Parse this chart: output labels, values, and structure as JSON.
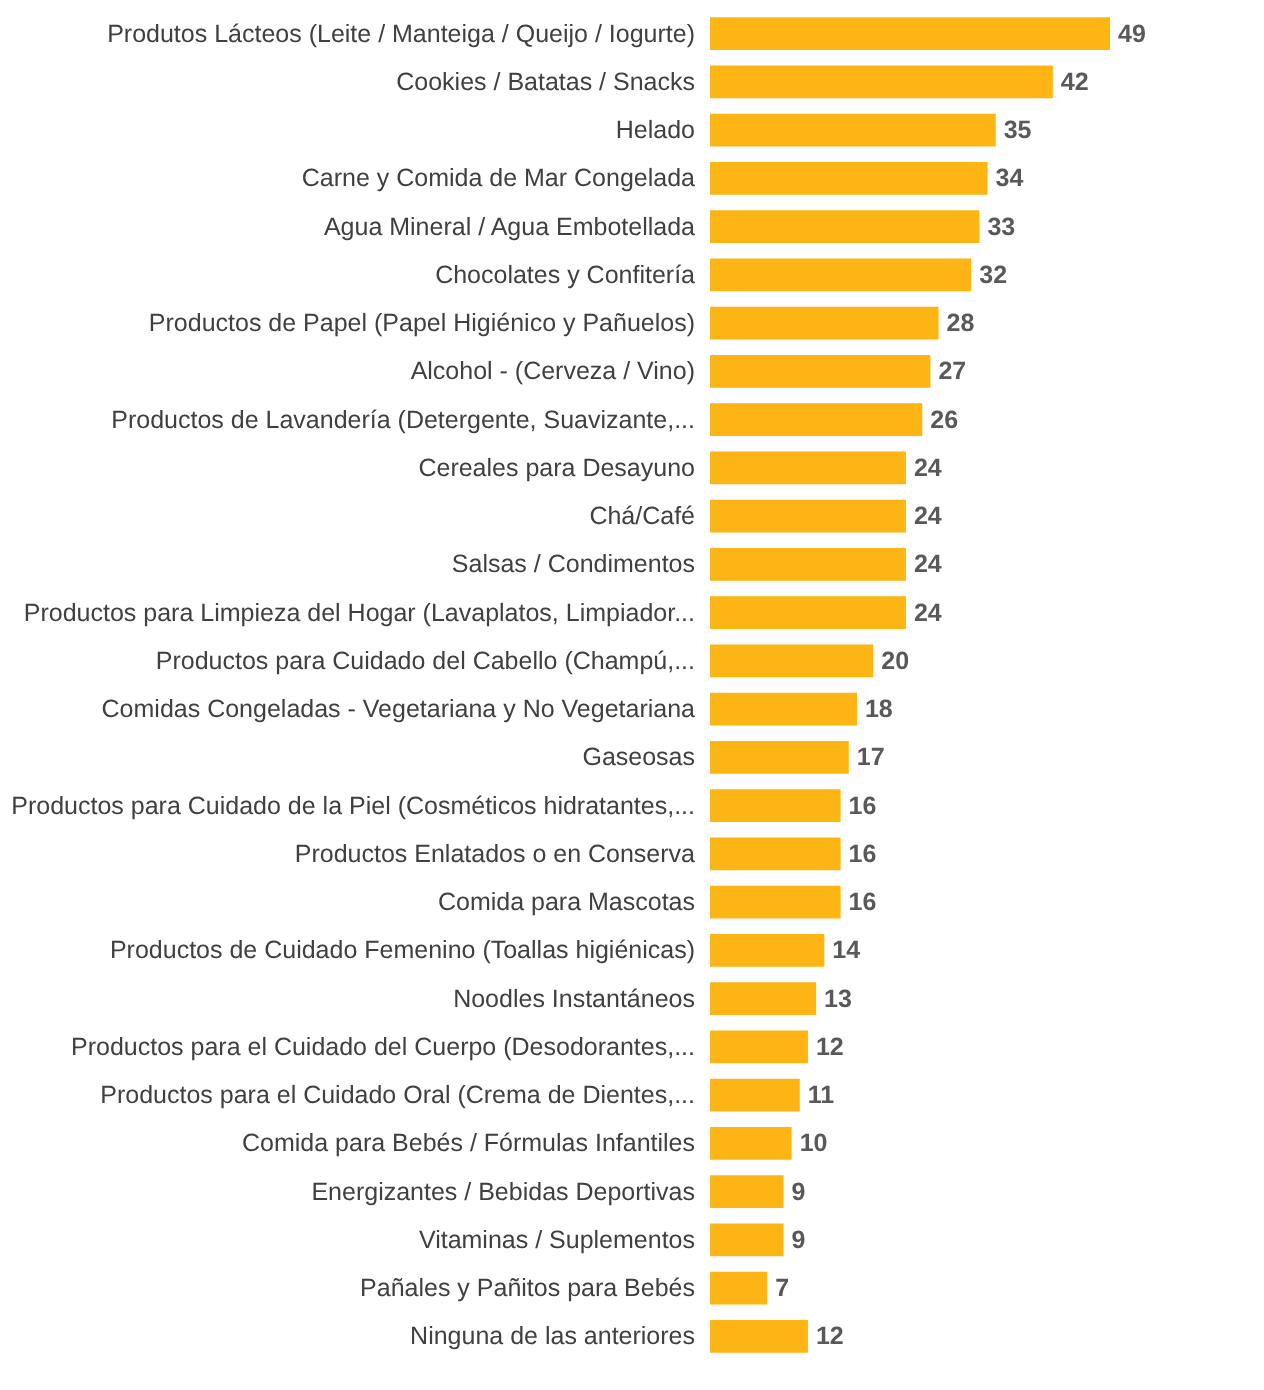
{
  "chart_data": {
    "type": "bar",
    "orientation": "horizontal",
    "data_labels": true,
    "color": "#fdb515",
    "categories": [
      "Produtos Lácteos (Leite / Manteiga / Queijo / Iogurte)",
      "Cookies / Batatas / Snacks",
      "Helado",
      "Carne y Comida de Mar Congelada",
      "Agua Mineral / Agua Embotellada",
      "Chocolates y Confitería",
      "Productos de Papel (Papel Higiénico y Pañuelos)",
      "Alcohol - (Cerveza / Vino)",
      "Productos de Lavandería (Detergente, Suavizante,...",
      "Cereales para Desayuno",
      "Chá/Café",
      "Salsas / Condimentos",
      "Productos para Limpieza del Hogar (Lavaplatos, Limpiador...",
      "Productos para Cuidado del Cabello (Champú,...",
      "Comidas Congeladas - Vegetariana y No Vegetariana",
      "Gaseosas",
      "Productos para Cuidado de la Piel (Cosméticos hidratantes,...",
      "Productos Enlatados o en Conserva",
      "Comida para Mascotas",
      "Productos de Cuidado Femenino (Toallas higiénicas)",
      "Noodles Instantáneos",
      "Productos para el Cuidado del Cuerpo (Desodorantes,...",
      "Productos para el Cuidado Oral (Crema de Dientes,...",
      "Comida para Bebés / Fórmulas Infantiles",
      "Energizantes / Bebidas Deportivas",
      "Vitaminas / Suplementos",
      "Pañales y Pañitos para Bebés",
      "Ninguna de las anteriores"
    ],
    "values": [
      49,
      42,
      35,
      34,
      33,
      32,
      28,
      27,
      26,
      24,
      24,
      24,
      24,
      20,
      18,
      17,
      16,
      16,
      16,
      14,
      13,
      12,
      11,
      10,
      9,
      9,
      7,
      12
    ]
  }
}
